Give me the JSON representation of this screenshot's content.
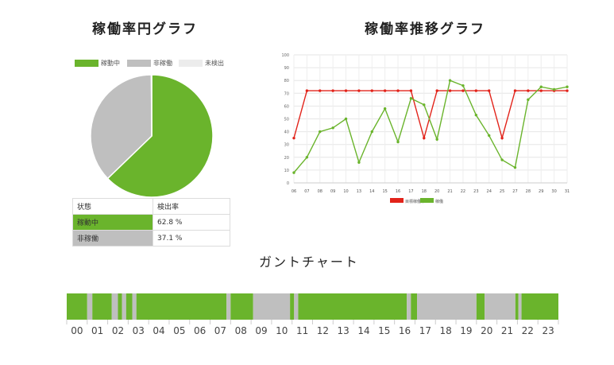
{
  "titles": {
    "pie": "稼働率円グラフ",
    "line": "稼働率推移グラフ",
    "gantt": "ガントチャート"
  },
  "chart_data": [
    {
      "type": "pie",
      "legend": [
        "稼動中",
        "非稼働",
        "未検出"
      ],
      "legend_colors": [
        "#6ab42c",
        "#bfbfbf",
        "#ececec"
      ],
      "slices": [
        {
          "label": "稼動中",
          "value": 62.8,
          "color": "#6ab42c"
        },
        {
          "label": "非稼働",
          "value": 37.1,
          "color": "#bfbfbf"
        },
        {
          "label": "未検出",
          "value": 0.1,
          "color": "#ececec"
        }
      ],
      "table": {
        "headers": [
          "状態",
          "検出率"
        ],
        "rows": [
          {
            "label": "稼動中",
            "value": "62.8 %",
            "color": "#6ab42c"
          },
          {
            "label": "非稼働",
            "value": "37.1 %",
            "color": "#bfbfbf"
          }
        ]
      }
    },
    {
      "type": "line",
      "x": [
        "06",
        "07",
        "08",
        "09",
        "10",
        "13",
        "14",
        "15",
        "16",
        "17",
        "18",
        "20",
        "21",
        "22",
        "23",
        "24",
        "25",
        "27",
        "28",
        "29",
        "30",
        "31"
      ],
      "ylim": [
        0,
        100
      ],
      "yticks": [
        0,
        10,
        20,
        30,
        40,
        50,
        60,
        70,
        80,
        90,
        100
      ],
      "grid": true,
      "legend_position": "bottom",
      "series": [
        {
          "name": "目標稼働率",
          "color": "#e2231a",
          "values": [
            35,
            72,
            72,
            72,
            72,
            72,
            72,
            72,
            72,
            72,
            35,
            72,
            72,
            72,
            72,
            72,
            35,
            72,
            72,
            72,
            72,
            72
          ]
        },
        {
          "name": "稼働",
          "color": "#6ab42c",
          "values": [
            8,
            20,
            40,
            43,
            50,
            16,
            40,
            58,
            32,
            66,
            61,
            34,
            80,
            76,
            53,
            37,
            18,
            12,
            65,
            75,
            73,
            75
          ]
        }
      ]
    },
    {
      "type": "gantt",
      "hours": [
        "00",
        "01",
        "02",
        "03",
        "04",
        "05",
        "06",
        "07",
        "08",
        "09",
        "10",
        "11",
        "12",
        "13",
        "14",
        "15",
        "16",
        "17",
        "18",
        "19",
        "20",
        "21",
        "22",
        "23"
      ],
      "states": [
        "稼動中",
        "非稼働"
      ],
      "state_colors": [
        "#6ab42c",
        "#bfbfbf"
      ],
      "segments": [
        {
          "start": 0.0,
          "end": 1.0,
          "state": "稼動中"
        },
        {
          "start": 1.0,
          "end": 1.25,
          "state": "非稼働"
        },
        {
          "start": 1.25,
          "end": 2.2,
          "state": "稼動中"
        },
        {
          "start": 2.2,
          "end": 2.5,
          "state": "非稼働"
        },
        {
          "start": 2.5,
          "end": 2.7,
          "state": "稼動中"
        },
        {
          "start": 2.7,
          "end": 2.9,
          "state": "非稼働"
        },
        {
          "start": 2.9,
          "end": 3.2,
          "state": "稼動中"
        },
        {
          "start": 3.2,
          "end": 3.4,
          "state": "非稼働"
        },
        {
          "start": 3.4,
          "end": 7.8,
          "state": "稼動中"
        },
        {
          "start": 7.8,
          "end": 8.0,
          "state": "非稼働"
        },
        {
          "start": 8.0,
          "end": 9.1,
          "state": "稼動中"
        },
        {
          "start": 9.1,
          "end": 10.9,
          "state": "非稼働"
        },
        {
          "start": 10.9,
          "end": 11.1,
          "state": "稼動中"
        },
        {
          "start": 11.1,
          "end": 11.3,
          "state": "非稼働"
        },
        {
          "start": 11.3,
          "end": 16.6,
          "state": "稼動中"
        },
        {
          "start": 16.6,
          "end": 16.8,
          "state": "非稼働"
        },
        {
          "start": 16.8,
          "end": 17.1,
          "state": "稼動中"
        },
        {
          "start": 17.1,
          "end": 20.0,
          "state": "非稼働"
        },
        {
          "start": 20.0,
          "end": 20.4,
          "state": "稼動中"
        },
        {
          "start": 20.4,
          "end": 21.9,
          "state": "非稼働"
        },
        {
          "start": 21.9,
          "end": 22.05,
          "state": "稼動中"
        },
        {
          "start": 22.05,
          "end": 22.2,
          "state": "非稼働"
        },
        {
          "start": 22.2,
          "end": 24.0,
          "state": "稼動中"
        }
      ]
    }
  ]
}
